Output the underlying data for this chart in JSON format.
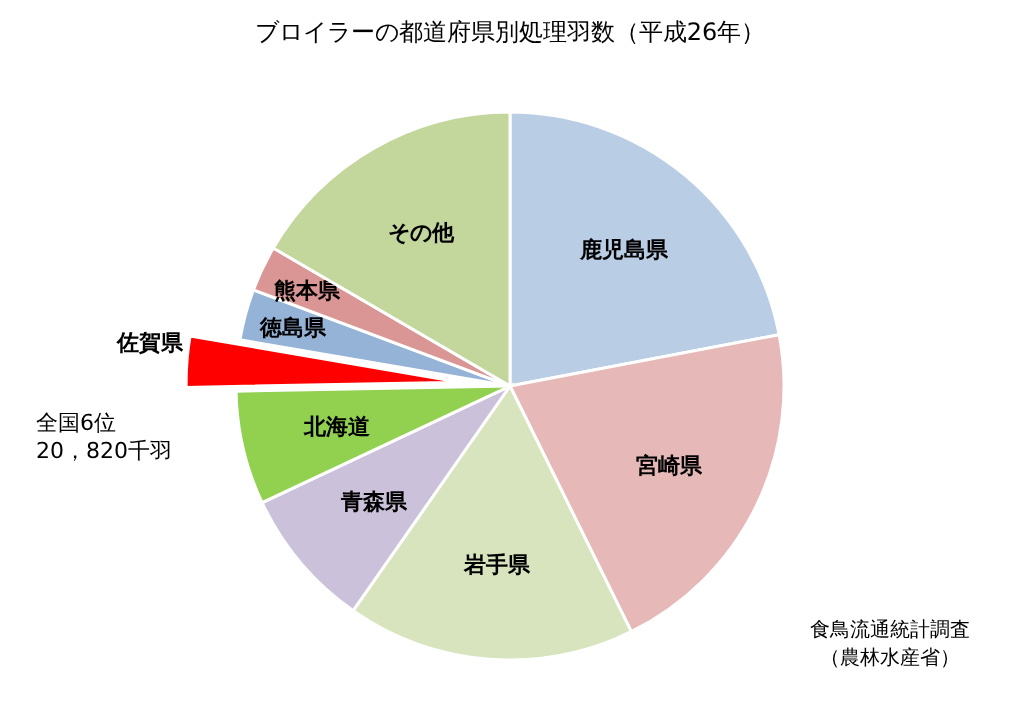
{
  "chart_data": {
    "type": "pie",
    "title": "ブロイラーの都道府県別処理羽数（平成26年）",
    "categories": [
      "鹿児島県",
      "宮崎県",
      "岩手県",
      "青森県",
      "北海道",
      "佐賀県",
      "徳島県",
      "熊本県",
      "その他"
    ],
    "values": [
      22,
      20.7,
      17,
      8.3,
      6.7,
      3,
      3,
      2.7,
      16.6
    ],
    "colors": [
      "#b9cde5",
      "#e6b9b8",
      "#d7e4bd",
      "#ccc1da",
      "#92d050",
      "#ff0000",
      "#95b3d7",
      "#d99694",
      "#c3d69b"
    ],
    "annotations": [
      {
        "text": "全国6位\n20，820千羽",
        "x": "佐賀県"
      },
      "食鳥流通統計調査",
      "（農林水産省）"
    ]
  }
}
